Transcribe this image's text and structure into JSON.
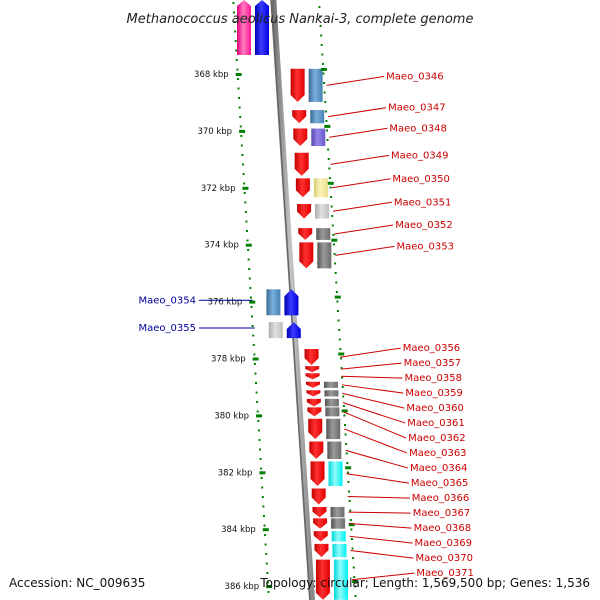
{
  "title": "Methanococcus aeolicus Nankai-3, complete genome",
  "footer": {
    "accession": "Accession: NC_009635",
    "summary": "Topology: circular; Length: 1,569,500 bp; Genes: 1,536"
  },
  "colors": {
    "forward_cds": "#ff0000",
    "reverse_cds": "#0000ff",
    "label_forward": "#cc0000",
    "label_reverse": "#000099",
    "tick_major": "#008000",
    "backbone": "#888888",
    "cog_steel": "#4682b4",
    "cog_grey": "#707070",
    "cog_light": "#c8c8c8",
    "cog_cyan": "#00ffff",
    "cog_khaki": "#f0e68c",
    "cog_purple": "#6a5acd"
  },
  "axis": {
    "ticks": [
      {
        "kbp": 368,
        "label": "368 kbp"
      },
      {
        "kbp": 370,
        "label": "370 kbp"
      },
      {
        "kbp": 372,
        "label": "372 kbp"
      },
      {
        "kbp": 374,
        "label": "374 kbp"
      },
      {
        "kbp": 376,
        "label": "376 kbp"
      },
      {
        "kbp": 378,
        "label": "378 kbp"
      },
      {
        "kbp": 380,
        "label": "380 kbp"
      },
      {
        "kbp": 382,
        "label": "382 kbp"
      },
      {
        "kbp": 384,
        "label": "384 kbp"
      },
      {
        "kbp": 386,
        "label": "386 kbp"
      }
    ]
  },
  "genes_forward": [
    {
      "name": "Maeo_0346",
      "start_kbp": 367.8,
      "end_kbp": 369.0,
      "cog": "steel"
    },
    {
      "name": "Maeo_0347",
      "start_kbp": 369.25,
      "end_kbp": 369.75,
      "cog": "steel"
    },
    {
      "name": "Maeo_0348",
      "start_kbp": 369.9,
      "end_kbp": 370.55,
      "cog": "purple"
    },
    {
      "name": "Maeo_0349",
      "start_kbp": 370.75,
      "end_kbp": 371.6,
      "cog": "none"
    },
    {
      "name": "Maeo_0350",
      "start_kbp": 371.65,
      "end_kbp": 372.35,
      "cog": "khaki"
    },
    {
      "name": "Maeo_0351",
      "start_kbp": 372.55,
      "end_kbp": 373.1,
      "cog": "light"
    },
    {
      "name": "Maeo_0352",
      "start_kbp": 373.4,
      "end_kbp": 373.85,
      "cog": "grey"
    },
    {
      "name": "Maeo_0353",
      "start_kbp": 373.9,
      "end_kbp": 374.85,
      "cog": "grey"
    },
    {
      "name": "Maeo_0356",
      "start_kbp": 377.65,
      "end_kbp": 378.25,
      "cog": "none"
    },
    {
      "name": "Maeo_0357",
      "start_kbp": 378.25,
      "end_kbp": 378.5,
      "cog": "none"
    },
    {
      "name": "Maeo_0358",
      "start_kbp": 378.5,
      "end_kbp": 378.75,
      "cog": "none"
    },
    {
      "name": "Maeo_0359",
      "start_kbp": 378.8,
      "end_kbp": 379.05,
      "cog": "grey"
    },
    {
      "name": "Maeo_0360",
      "start_kbp": 379.1,
      "end_kbp": 379.35,
      "cog": "grey"
    },
    {
      "name": "Maeo_0361",
      "start_kbp": 379.4,
      "end_kbp": 379.7,
      "cog": "grey"
    },
    {
      "name": "Maeo_0362",
      "start_kbp": 379.7,
      "end_kbp": 380.05,
      "cog": "grey"
    },
    {
      "name": "Maeo_0363",
      "start_kbp": 380.1,
      "end_kbp": 380.85,
      "cog": "grey"
    },
    {
      "name": "Maeo_0364",
      "start_kbp": 380.9,
      "end_kbp": 381.55,
      "cog": "grey"
    },
    {
      "name": "Maeo_0365",
      "start_kbp": 381.6,
      "end_kbp": 382.5,
      "cog": "cyan"
    },
    {
      "name": "Maeo_0366",
      "start_kbp": 382.55,
      "end_kbp": 383.15,
      "cog": "none"
    },
    {
      "name": "Maeo_0367",
      "start_kbp": 383.2,
      "end_kbp": 383.6,
      "cog": "grey"
    },
    {
      "name": "Maeo_0368",
      "start_kbp": 383.6,
      "end_kbp": 384.0,
      "cog": "grey"
    },
    {
      "name": "Maeo_0369",
      "start_kbp": 384.05,
      "end_kbp": 384.45,
      "cog": "cyan"
    },
    {
      "name": "Maeo_0370",
      "start_kbp": 384.5,
      "end_kbp": 385.0,
      "cog": "cyan"
    },
    {
      "name": "Maeo_0371",
      "start_kbp": 385.05,
      "end_kbp": 386.5,
      "cog": "cyan"
    }
  ],
  "genes_reverse": [
    {
      "name": "Maeo_0354",
      "start_kbp": 375.55,
      "end_kbp": 376.5,
      "cog": "steel"
    },
    {
      "name": "Maeo_0355",
      "start_kbp": 376.7,
      "end_kbp": 377.3,
      "cog": "light"
    }
  ],
  "partial_genes_top": [
    {
      "strand": "reverse",
      "cog": "pink"
    },
    {
      "strand": "reverse",
      "cog": "blue"
    }
  ],
  "gene_labels": [
    {
      "gene": "Maeo_0346",
      "text": "Maeo_0346",
      "strand": "forward"
    },
    {
      "gene": "Maeo_0347",
      "text": "Maeo_0347",
      "strand": "forward"
    },
    {
      "gene": "Maeo_0348",
      "text": "Maeo_0348",
      "strand": "forward"
    },
    {
      "gene": "Maeo_0349",
      "text": "Maeo_0349",
      "strand": "forward"
    },
    {
      "gene": "Maeo_0350",
      "text": "Maeo_0350",
      "strand": "forward"
    },
    {
      "gene": "Maeo_0351",
      "text": "Maeo_0351",
      "strand": "forward"
    },
    {
      "gene": "Maeo_0352",
      "text": "Maeo_0352",
      "strand": "forward"
    },
    {
      "gene": "Maeo_0353",
      "text": "Maeo_0353",
      "strand": "forward"
    },
    {
      "gene": "Maeo_0354",
      "text": "Maeo_0354",
      "strand": "reverse"
    },
    {
      "gene": "Maeo_0355",
      "text": "Maeo_0355",
      "strand": "reverse"
    },
    {
      "gene": "Maeo_0356",
      "text": "Maeo_0356",
      "strand": "forward"
    },
    {
      "gene": "Maeo_0357",
      "text": "Maeo_0357",
      "strand": "forward"
    },
    {
      "gene": "Maeo_0358",
      "text": "Maeo_0358",
      "strand": "forward"
    },
    {
      "gene": "Maeo_0359",
      "text": "Maeo_0359",
      "strand": "forward"
    },
    {
      "gene": "Maeo_0360",
      "text": "Maeo_0360",
      "strand": "forward"
    },
    {
      "gene": "Maeo_0361",
      "text": "Maeo_0361",
      "strand": "forward"
    },
    {
      "gene": "Maeo_0362",
      "text": "Maeo_0362",
      "strand": "forward"
    },
    {
      "gene": "Maeo_0363",
      "text": "Maeo_0363",
      "strand": "forward"
    },
    {
      "gene": "Maeo_0364",
      "text": "Maeo_0364",
      "strand": "forward"
    },
    {
      "gene": "Maeo_0365",
      "text": "Maeo_0365",
      "strand": "forward"
    },
    {
      "gene": "Maeo_0366",
      "text": "Maeo_0366",
      "strand": "forward"
    },
    {
      "gene": "Maeo_0367",
      "text": "Maeo_0367",
      "strand": "forward"
    },
    {
      "gene": "Maeo_0368",
      "text": "Maeo_0368",
      "strand": "forward"
    },
    {
      "gene": "Maeo_0369",
      "text": "Maeo_0369",
      "strand": "forward"
    },
    {
      "gene": "Maeo_0370",
      "text": "Maeo_0370",
      "strand": "forward"
    },
    {
      "gene": "Maeo_0371",
      "text": "Maeo_0371",
      "strand": "forward"
    }
  ]
}
